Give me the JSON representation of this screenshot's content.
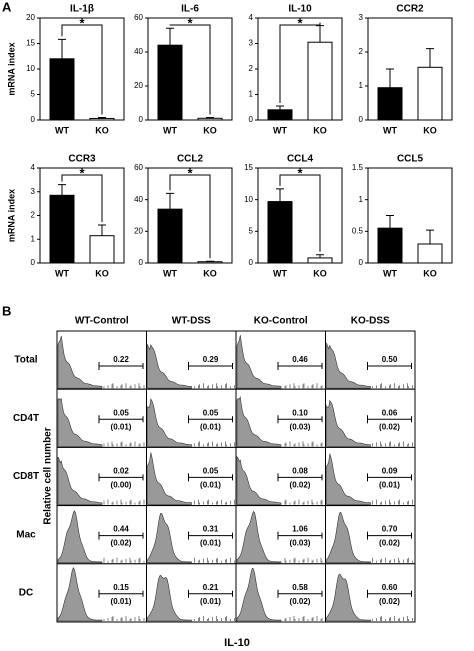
{
  "panel_labels": [
    "A",
    "B"
  ],
  "chart_data": [
    {
      "type": "bar",
      "title": "IL-1β",
      "y_label": "mRNA index",
      "categories": [
        "WT",
        "KO"
      ],
      "values": [
        12,
        0.3
      ],
      "errors": [
        3.8,
        0.2
      ],
      "colors": [
        "#000000",
        "#ffffff"
      ],
      "ylim": [
        0,
        20
      ],
      "yticks": [
        0,
        5,
        10,
        15,
        20
      ],
      "annotation": "*"
    },
    {
      "type": "bar",
      "title": "IL-6",
      "categories": [
        "WT",
        "KO"
      ],
      "values": [
        44,
        1
      ],
      "errors": [
        10,
        0.5
      ],
      "colors": [
        "#000000",
        "#ffffff"
      ],
      "ylim": [
        0,
        60
      ],
      "yticks": [
        0,
        20,
        40,
        60
      ],
      "annotation": "*"
    },
    {
      "type": "bar",
      "title": "IL-10",
      "categories": [
        "WT",
        "KO"
      ],
      "values": [
        0.4,
        3.05
      ],
      "errors": [
        0.15,
        0.65
      ],
      "colors": [
        "#000000",
        "#ffffff"
      ],
      "ylim": [
        0,
        4
      ],
      "yticks": [
        0,
        1,
        2,
        3,
        4
      ],
      "annotation": "*"
    },
    {
      "type": "bar",
      "title": "CCR2",
      "categories": [
        "WT",
        "KO"
      ],
      "values": [
        0.95,
        1.55
      ],
      "errors": [
        0.55,
        0.55
      ],
      "colors": [
        "#000000",
        "#ffffff"
      ],
      "ylim": [
        0,
        3
      ],
      "yticks": [
        0,
        1,
        2,
        3
      ]
    },
    {
      "type": "bar",
      "title": "CCR3",
      "y_label": "mRNA index",
      "categories": [
        "WT",
        "KO"
      ],
      "values": [
        2.85,
        1.15
      ],
      "errors": [
        0.45,
        0.45
      ],
      "colors": [
        "#000000",
        "#ffffff"
      ],
      "ylim": [
        0,
        4
      ],
      "yticks": [
        0,
        1,
        2,
        3,
        4
      ],
      "annotation": "*"
    },
    {
      "type": "bar",
      "title": "CCL2",
      "categories": [
        "WT",
        "KO"
      ],
      "values": [
        34,
        0.8
      ],
      "errors": [
        10,
        0.3
      ],
      "colors": [
        "#000000",
        "#ffffff"
      ],
      "ylim": [
        0,
        60
      ],
      "yticks": [
        0,
        20,
        40,
        60
      ],
      "annotation": "*"
    },
    {
      "type": "bar",
      "title": "CCL4",
      "categories": [
        "WT",
        "KO"
      ],
      "values": [
        9.7,
        0.8
      ],
      "errors": [
        2,
        0.5
      ],
      "colors": [
        "#000000",
        "#ffffff"
      ],
      "ylim": [
        0,
        15
      ],
      "yticks": [
        0,
        5,
        10,
        15
      ],
      "annotation": "*"
    },
    {
      "type": "bar",
      "title": "CCL5",
      "categories": [
        "WT",
        "KO"
      ],
      "values": [
        0.55,
        0.3
      ],
      "errors": [
        0.2,
        0.22
      ],
      "colors": [
        "#000000",
        "#ffffff"
      ],
      "ylim": [
        0,
        1.5
      ],
      "yticks": [
        0,
        0.5,
        1,
        1.5
      ]
    }
  ],
  "panel_b": {
    "columns": [
      "WT-Control",
      "WT-DSS",
      "KO-Control",
      "KO-DSS"
    ],
    "y_axis_label": "Relative cell number",
    "x_axis_label": "IL-10",
    "rows": [
      {
        "label": "Total",
        "cells": [
          {
            "value": "0.22"
          },
          {
            "value": "0.29"
          },
          {
            "value": "0.46"
          },
          {
            "value": "0.50"
          }
        ]
      },
      {
        "label": "CD4T",
        "cells": [
          {
            "value": "0.05",
            "sub": "(0.01)"
          },
          {
            "value": "0.05",
            "sub": "(0.01)"
          },
          {
            "value": "0.10",
            "sub": "(0.03)"
          },
          {
            "value": "0.06",
            "sub": "(0.02)"
          }
        ]
      },
      {
        "label": "CD8T",
        "cells": [
          {
            "value": "0.02",
            "sub": "(0.00)"
          },
          {
            "value": "0.05",
            "sub": "(0.01)"
          },
          {
            "value": "0.08",
            "sub": "(0.02)"
          },
          {
            "value": "0.09",
            "sub": "(0.01)"
          }
        ]
      },
      {
        "label": "Mac",
        "cells": [
          {
            "value": "0.44",
            "sub": "(0.02)"
          },
          {
            "value": "0.31",
            "sub": "(0.01)"
          },
          {
            "value": "1.06",
            "sub": "(0.03)"
          },
          {
            "value": "0.70",
            "sub": "(0.02)"
          }
        ]
      },
      {
        "label": "DC",
        "cells": [
          {
            "value": "0.15",
            "sub": "(0.01)"
          },
          {
            "value": "0.21",
            "sub": "(0.01)"
          },
          {
            "value": "0.58",
            "sub": "(0.02)"
          },
          {
            "value": "0.60",
            "sub": "(0.02)"
          }
        ]
      }
    ]
  }
}
